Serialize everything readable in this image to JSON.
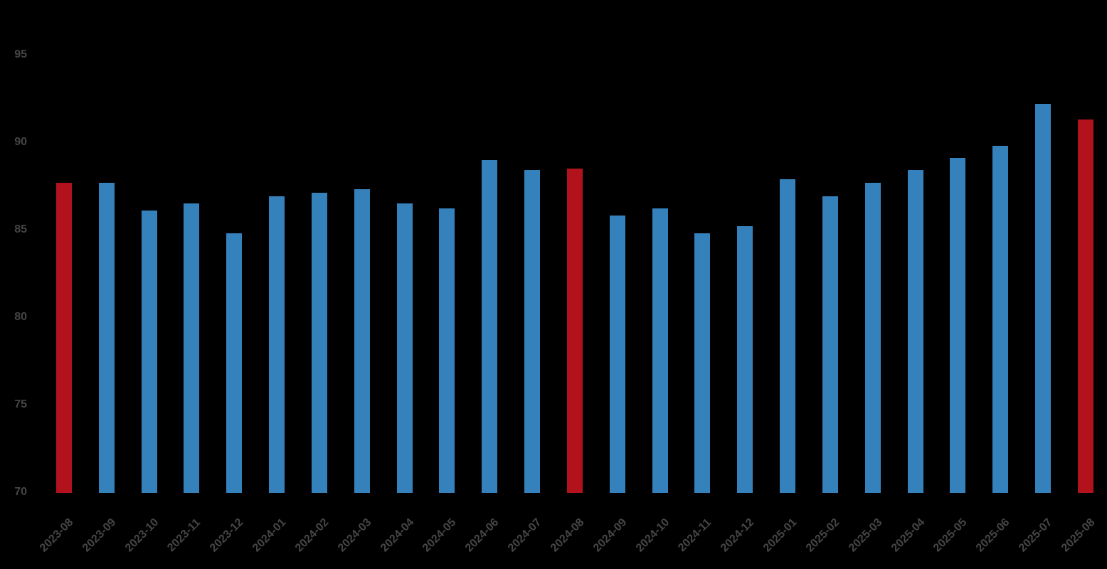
{
  "chart_data": {
    "type": "bar",
    "title": "",
    "xlabel": "",
    "ylabel": "",
    "categories": [
      "2023-08",
      "2023-09",
      "2023-10",
      "2023-11",
      "2023-12",
      "2024-01",
      "2024-02",
      "2024-03",
      "2024-04",
      "2024-05",
      "2024-06",
      "2024-07",
      "2024-08",
      "2024-09",
      "2024-10",
      "2024-11",
      "2024-12",
      "2025-01",
      "2025-02",
      "2025-03",
      "2025-04",
      "2025-05",
      "2025-06",
      "2025-07",
      "2025-08"
    ],
    "values": [
      87.7,
      87.7,
      86.1,
      86.5,
      84.8,
      86.9,
      87.1,
      87.3,
      86.5,
      86.2,
      89.0,
      88.4,
      88.5,
      85.8,
      86.2,
      84.8,
      85.2,
      87.9,
      86.9,
      87.7,
      88.4,
      89.1,
      89.8,
      92.2,
      91.3
    ],
    "highlight_categories": [
      "2023-08",
      "2024-08",
      "2025-08"
    ],
    "yticks": [
      70,
      75,
      80,
      85,
      90,
      95
    ],
    "ylim": [
      70,
      95
    ],
    "grid": false,
    "legend": "none",
    "colors": {
      "bar_default": "#3581BC",
      "bar_highlight": "#B1121B",
      "tick_text": "#464646",
      "background": "#000000"
    }
  }
}
